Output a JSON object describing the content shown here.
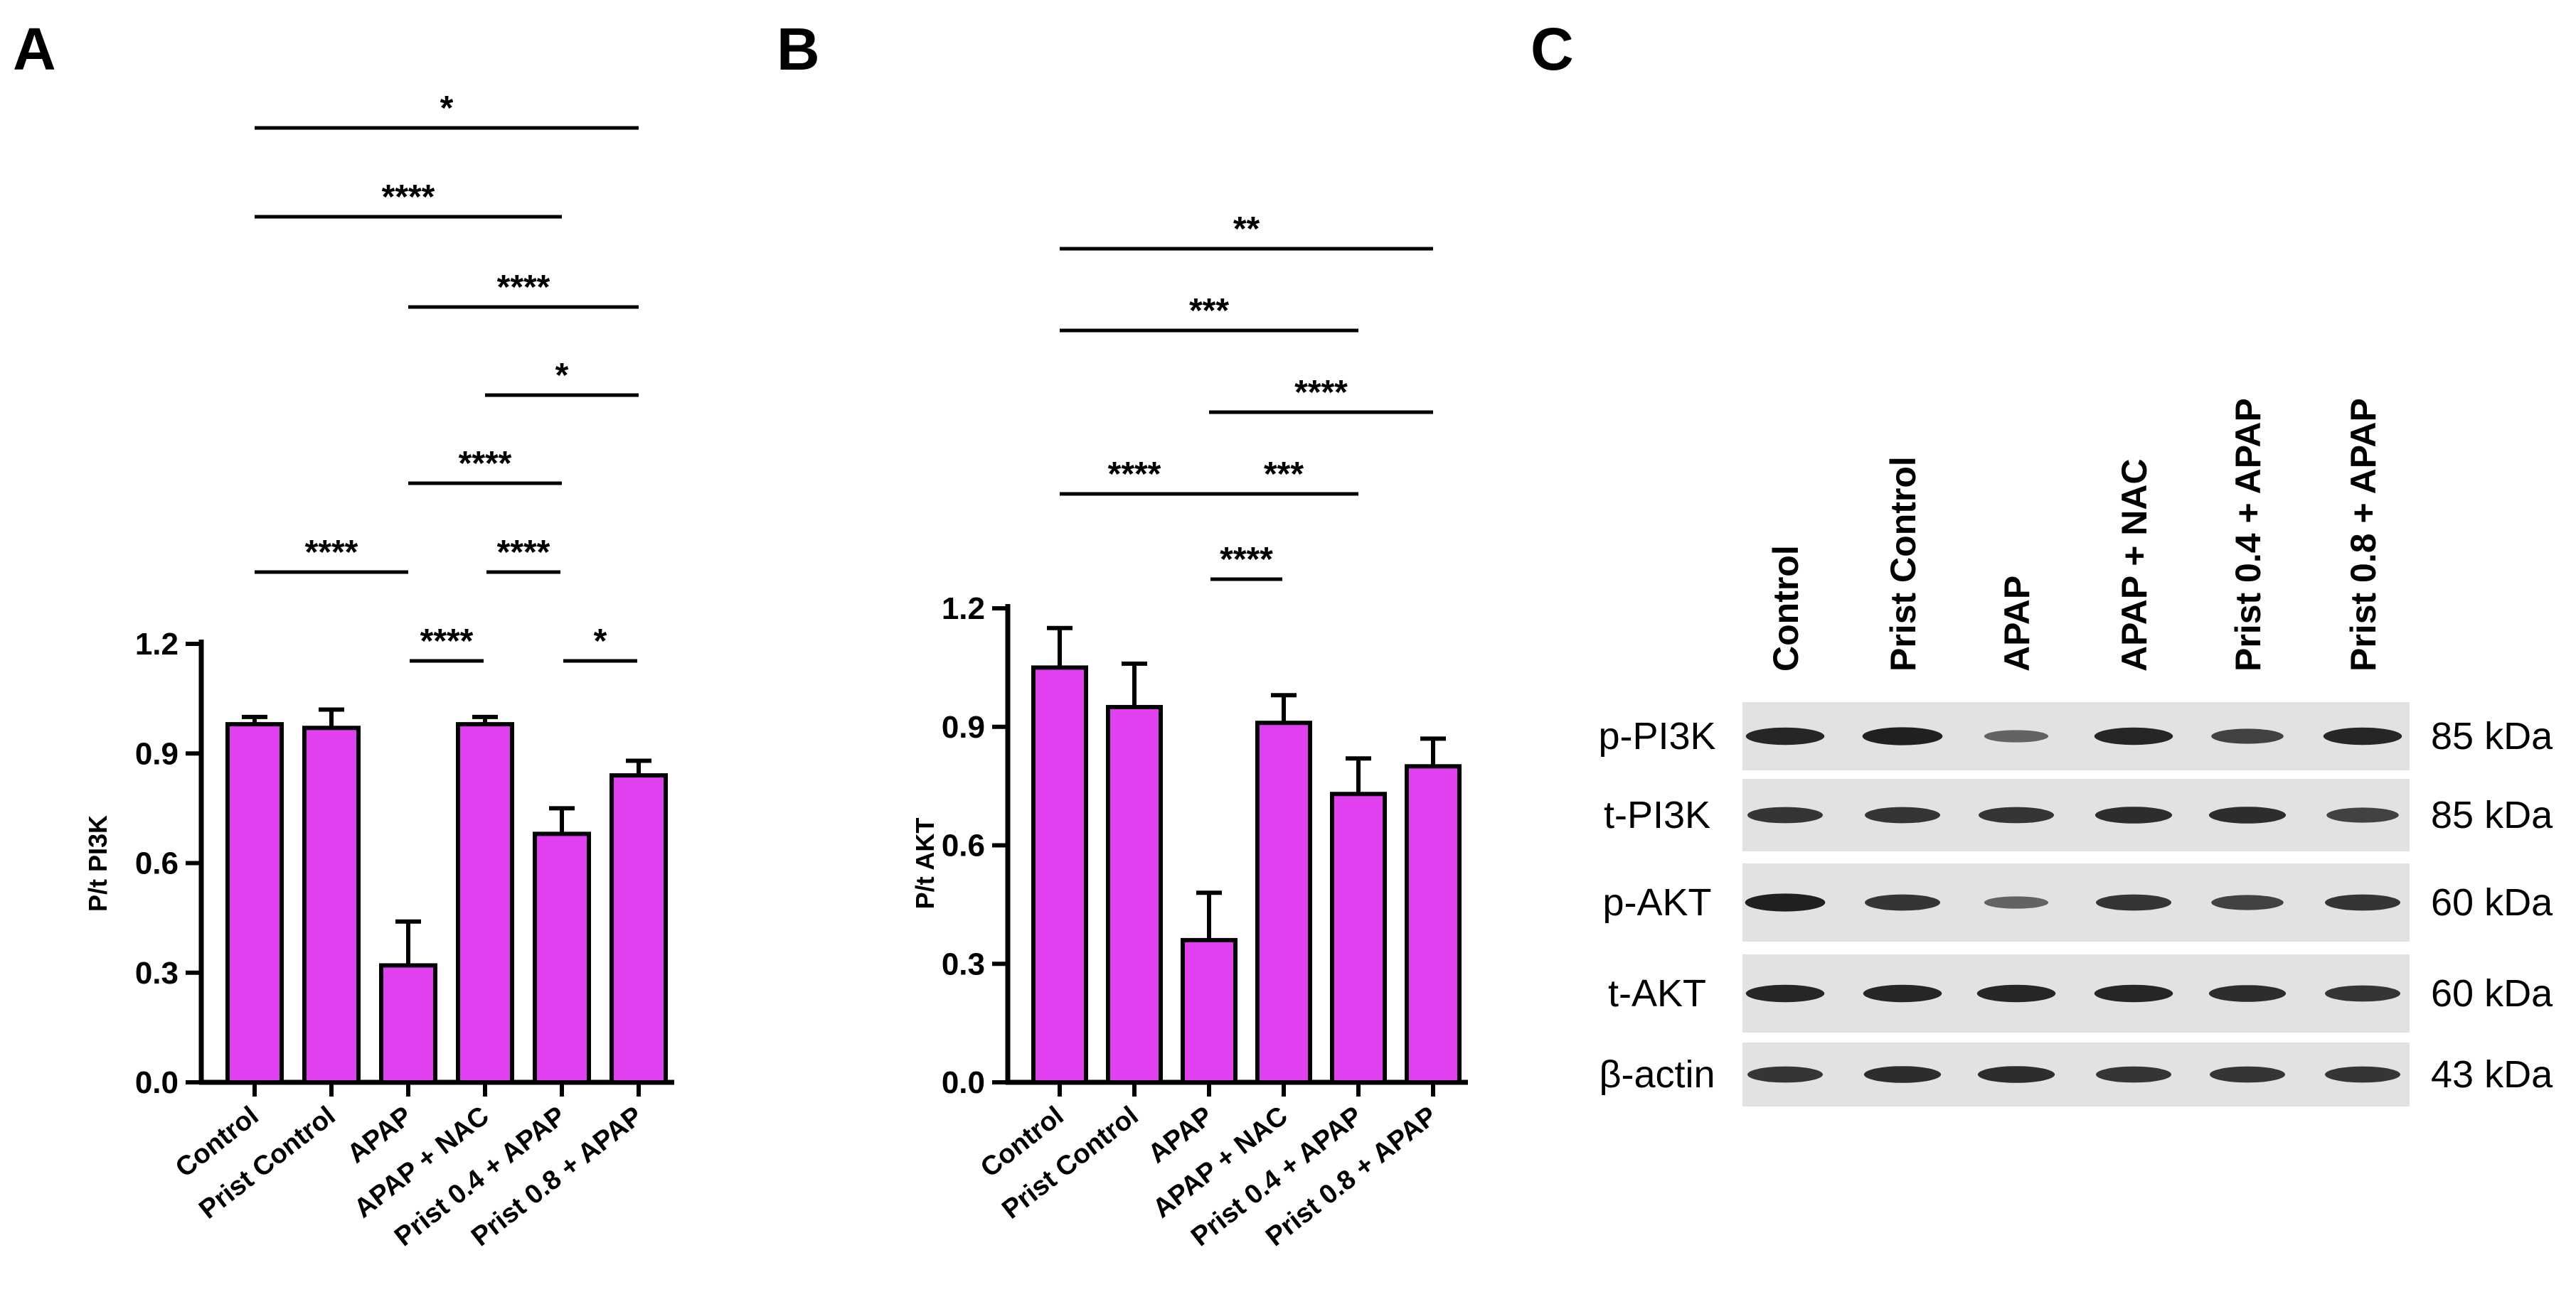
{
  "panel_letters": [
    "A",
    "B",
    "C"
  ],
  "chart_data": [
    {
      "type": "bar",
      "panel": "A",
      "ylabel": "P/t PI3K",
      "xlabel": "",
      "ylim": [
        0,
        1.2
      ],
      "yticks": [
        "0.0",
        "0.3",
        "0.6",
        "0.9",
        "1.2"
      ],
      "categories": [
        "Control",
        "Prist Control",
        "APAP",
        "APAP + NAC",
        "Prist 0.4 + APAP",
        "Prist 0.8 + APAP"
      ],
      "values": [
        0.98,
        0.97,
        0.32,
        0.98,
        0.68,
        0.84
      ],
      "errors": [
        0.02,
        0.05,
        0.12,
        0.02,
        0.07,
        0.04
      ],
      "bar_color": "#e040f0",
      "significance": [
        {
          "from": 0,
          "to": 5,
          "label": "*"
        },
        {
          "from": 0,
          "to": 4,
          "label": "****"
        },
        {
          "from": 2,
          "to": 5,
          "label": "****"
        },
        {
          "from": 3,
          "to": 5,
          "label": "*"
        },
        {
          "from": 2,
          "to": 4,
          "label": "****"
        },
        {
          "from": 0,
          "to": 2,
          "label": "****"
        },
        {
          "from": 3,
          "to": 4,
          "label": "****"
        },
        {
          "from": 2,
          "to": 3,
          "label": "****"
        },
        {
          "from": 4,
          "to": 5,
          "label": "*"
        }
      ]
    },
    {
      "type": "bar",
      "panel": "B",
      "ylabel": "P/t AKT",
      "xlabel": "",
      "ylim": [
        0,
        1.2
      ],
      "yticks": [
        "0.0",
        "0.3",
        "0.6",
        "0.9",
        "1.2"
      ],
      "categories": [
        "Control",
        "Prist Control",
        "APAP",
        "APAP + NAC",
        "Prist 0.4 + APAP",
        "Prist 0.8 + APAP"
      ],
      "values": [
        1.05,
        0.95,
        0.36,
        0.91,
        0.73,
        0.8
      ],
      "errors": [
        0.1,
        0.11,
        0.12,
        0.07,
        0.09,
        0.07
      ],
      "bar_color": "#e040f0",
      "significance": [
        {
          "from": 0,
          "to": 5,
          "label": "**"
        },
        {
          "from": 0,
          "to": 4,
          "label": "***"
        },
        {
          "from": 2,
          "to": 5,
          "label": "****"
        },
        {
          "from": 0,
          "to": 2,
          "label": "****"
        },
        {
          "from": 2,
          "to": 4,
          "label": "***"
        },
        {
          "from": 2,
          "to": 3,
          "label": "****"
        }
      ]
    }
  ],
  "blot": {
    "lanes": [
      "Control",
      "Prist Control",
      "APAP",
      "APAP + NAC",
      "Prist 0.4 + APAP",
      "Prist 0.8 + APAP"
    ],
    "rows": [
      {
        "protein": "p-PI3K",
        "kda": "85 kDa",
        "intensity": [
          0.9,
          0.95,
          0.45,
          0.9,
          0.7,
          0.9
        ]
      },
      {
        "protein": "t-PI3K",
        "kda": "85 kDa",
        "intensity": [
          0.8,
          0.8,
          0.8,
          0.85,
          0.85,
          0.7
        ]
      },
      {
        "protein": "p-AKT",
        "kda": "60 kDa",
        "intensity": [
          0.95,
          0.8,
          0.45,
          0.8,
          0.7,
          0.8
        ]
      },
      {
        "protein": "t-AKT",
        "kda": "60 kDa",
        "intensity": [
          0.9,
          0.9,
          0.9,
          0.9,
          0.85,
          0.8
        ]
      },
      {
        "protein": "β-actin",
        "kda": "43 kDa",
        "intensity": [
          0.8,
          0.85,
          0.85,
          0.8,
          0.8,
          0.8
        ]
      }
    ]
  }
}
